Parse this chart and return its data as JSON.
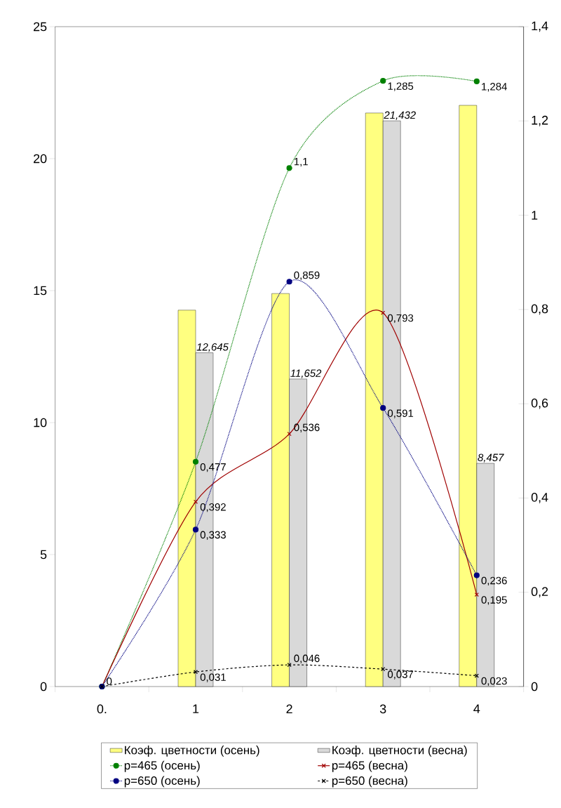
{
  "chart_data": {
    "type": "bar",
    "categories": [
      "0.",
      "1",
      "2",
      "3",
      "4"
    ],
    "ylim": [
      0,
      25
    ],
    "yticks": [
      0,
      5,
      10,
      15,
      20,
      25
    ],
    "y2lim": [
      0,
      1.4
    ],
    "y2ticks": [
      0,
      {
        "value": 0.2,
        "label": "0,2"
      },
      {
        "value": 0.4,
        "label": "0,4"
      },
      {
        "value": 0.6,
        "label": "0,6"
      },
      {
        "value": 0.8,
        "label": "0,8"
      },
      1,
      {
        "value": 1.2,
        "label": "1,2"
      },
      {
        "value": 1.4,
        "label": "1,4"
      }
    ],
    "legend": "bottom",
    "series": [
      {
        "name": "Коэф. цветности (осень)",
        "color": "#ffff80",
        "values": [
          null,
          14.26,
          14.89,
          21.73,
          22.02
        ]
      },
      {
        "name": "Коэф. цветности (весна)",
        "color": "#d9d9d9",
        "values": [
          null,
          12.645,
          11.652,
          21.432,
          8.457
        ],
        "value_labels": [
          null,
          "12,645",
          "11,652",
          "21,432",
          "8,457"
        ]
      },
      {
        "name": "p=465 (осень)",
        "type": "line",
        "axis": "y2",
        "color": "#008000",
        "marker": "circle",
        "line_style": "dotted",
        "values": [
          0,
          0.477,
          1.1,
          1.285,
          1.284
        ],
        "value_labels": [
          "0",
          "0,477",
          "1,1",
          "1,285",
          "1,284"
        ]
      },
      {
        "name": "p=465 (весна)",
        "type": "line",
        "axis": "y2",
        "color": "#a00000",
        "marker": "cross",
        "line_style": "solid",
        "values": [
          0,
          0.392,
          0.536,
          0.793,
          0.195
        ],
        "value_labels": [
          null,
          "0,392",
          "0,536",
          "0,793",
          "0,195"
        ]
      },
      {
        "name": "p=650 (осень)",
        "type": "line",
        "axis": "y2",
        "color": "#000080",
        "marker": "circle",
        "line_style": "dotted",
        "values": [
          0,
          0.333,
          0.859,
          0.591,
          0.236
        ],
        "value_labels": [
          null,
          "0,333",
          "0,859",
          "0,591",
          "0,236"
        ]
      },
      {
        "name": "p=650 (весна)",
        "type": "line",
        "axis": "y2",
        "color": "#000000",
        "marker": "cross",
        "line_style": "dashed",
        "values": [
          0,
          0.031,
          0.046,
          0.037,
          0.023
        ],
        "value_labels": [
          null,
          "0,031",
          "0,046",
          "0,037",
          "0,023"
        ]
      }
    ]
  }
}
